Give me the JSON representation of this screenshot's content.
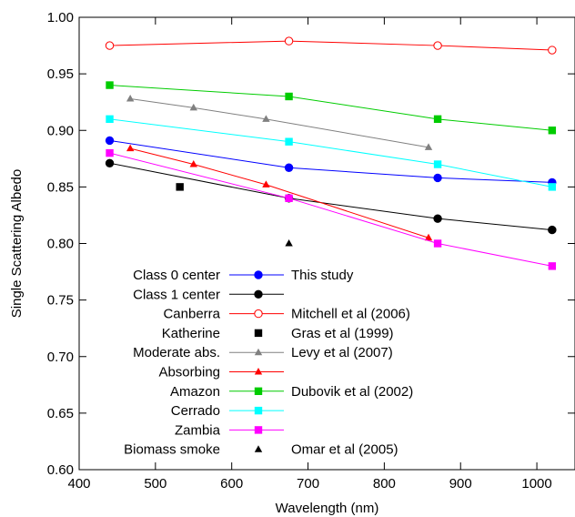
{
  "chart_data": {
    "type": "line",
    "title": "",
    "xlabel": "Wavelength (nm)",
    "ylabel": "Single Scattering Albedo",
    "xlim": [
      400,
      1050
    ],
    "ylim": [
      0.6,
      1.0
    ],
    "xticks": [
      400,
      500,
      600,
      700,
      800,
      900,
      1000
    ],
    "yticks": [
      0.6,
      0.65,
      0.7,
      0.75,
      0.8,
      0.85,
      0.9,
      0.95,
      1.0
    ],
    "xtick_labels": [
      "400",
      "500",
      "600",
      "700",
      "800",
      "900",
      "1000"
    ],
    "ytick_labels": [
      "0.60",
      "0.65",
      "0.70",
      "0.75",
      "0.80",
      "0.85",
      "0.90",
      "0.95",
      "1.00"
    ],
    "grid": false,
    "legend_position": "bottom-left",
    "series": [
      {
        "name": "Class 0 center",
        "color": "#0000ff",
        "marker": "circle",
        "x": [
          440,
          675,
          870,
          1020
        ],
        "y": [
          0.891,
          0.867,
          0.858,
          0.854
        ]
      },
      {
        "name": "Class 1 center",
        "color": "#000000",
        "marker": "circle",
        "x": [
          440,
          675,
          870,
          1020
        ],
        "y": [
          0.871,
          0.84,
          0.822,
          0.812
        ]
      },
      {
        "name": "Canberra",
        "color": "#ff0000",
        "marker": "open-circle",
        "x": [
          440,
          675,
          870,
          1020
        ],
        "y": [
          0.975,
          0.979,
          0.975,
          0.971
        ]
      },
      {
        "name": "Katherine",
        "color": "#000000",
        "marker": "square",
        "line": false,
        "x": [
          532
        ],
        "y": [
          0.85
        ]
      },
      {
        "name": "Moderate abs.",
        "color": "#808080",
        "marker": "triangle",
        "x": [
          467,
          550,
          645,
          858
        ],
        "y": [
          0.928,
          0.92,
          0.91,
          0.885
        ]
      },
      {
        "name": "Absorbing",
        "color": "#ff0000",
        "marker": "triangle",
        "x": [
          467,
          550,
          645,
          858
        ],
        "y": [
          0.884,
          0.87,
          0.852,
          0.805
        ]
      },
      {
        "name": "Amazon",
        "color": "#00cc00",
        "marker": "square",
        "x": [
          440,
          675,
          870,
          1020
        ],
        "y": [
          0.94,
          0.93,
          0.91,
          0.9
        ]
      },
      {
        "name": "Cerrado",
        "color": "#00ffff",
        "marker": "square",
        "x": [
          440,
          675,
          870,
          1020
        ],
        "y": [
          0.91,
          0.89,
          0.87,
          0.85
        ]
      },
      {
        "name": "Zambia",
        "color": "#ff00ff",
        "marker": "square",
        "x": [
          440,
          675,
          870,
          1020
        ],
        "y": [
          0.88,
          0.84,
          0.8,
          0.78
        ]
      },
      {
        "name": "Biomass smoke",
        "color": "#000000",
        "marker": "triangle",
        "line": false,
        "x": [
          675
        ],
        "y": [
          0.8
        ]
      }
    ],
    "legend": [
      {
        "label": "Class 0 center",
        "source": "This study"
      },
      {
        "label": "Class 1 center",
        "source": ""
      },
      {
        "label": "Canberra",
        "source": "Mitchell et al (2006)"
      },
      {
        "label": "Katherine",
        "source": "Gras et al (1999)"
      },
      {
        "label": "Moderate abs.",
        "source": "Levy et al (2007)"
      },
      {
        "label": "Absorbing",
        "source": ""
      },
      {
        "label": "Amazon",
        "source": "Dubovik et al (2002)"
      },
      {
        "label": "Cerrado",
        "source": ""
      },
      {
        "label": "Zambia",
        "source": ""
      },
      {
        "label": "Biomass smoke",
        "source": "Omar et al (2005)"
      }
    ]
  }
}
